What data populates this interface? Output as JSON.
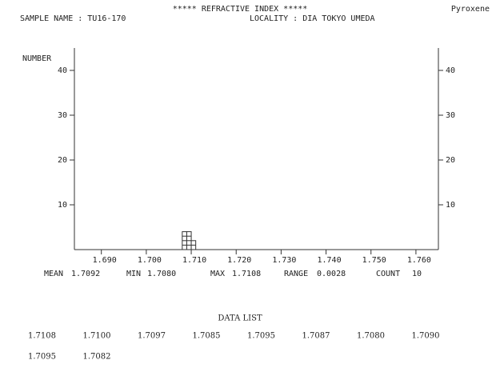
{
  "chart_data": {
    "type": "histogram",
    "title": "*****  REFRACTIVE  INDEX  *****",
    "corner_label": "Pyroxene",
    "sample_name": "SAMPLE NAME : TU16-170",
    "locality": "LOCALITY : DIA TOKYO UMEDA",
    "y_label": "NUMBER",
    "bins": [
      1.708,
      1.709,
      1.71,
      1.711
    ],
    "values": [
      4,
      4,
      2
    ],
    "color": "#ffffff",
    "xlim": [
      1.684,
      1.765
    ],
    "ylim": [
      0,
      45
    ],
    "xticks": [
      {
        "value": 1.69,
        "label": "1.690"
      },
      {
        "value": 1.7,
        "label": "1.700"
      },
      {
        "value": 1.71,
        "label": "1.710"
      },
      {
        "value": 1.72,
        "label": "1.720"
      },
      {
        "value": 1.73,
        "label": "1.730"
      },
      {
        "value": 1.74,
        "label": "1.740"
      },
      {
        "value": 1.75,
        "label": "1.750"
      },
      {
        "value": 1.76,
        "label": "1.760"
      }
    ],
    "yticks": [
      10,
      20,
      30,
      40
    ]
  },
  "stats": [
    {
      "label": "MEAN",
      "value": "1.7092"
    },
    {
      "label": "MIN",
      "value": "1.7080"
    },
    {
      "label": "MAX",
      "value": "1.7108"
    },
    {
      "label": "RANGE",
      "value": "0.0028"
    },
    {
      "label": "COUNT",
      "value": "10"
    }
  ],
  "data_list": {
    "title": "DATA  LIST",
    "values": [
      "1.7108",
      "1.7100",
      "1.7097",
      "1.7085",
      "1.7095",
      "1.7087",
      "1.7080",
      "1.7090",
      "1.7095",
      "1.7082"
    ]
  }
}
